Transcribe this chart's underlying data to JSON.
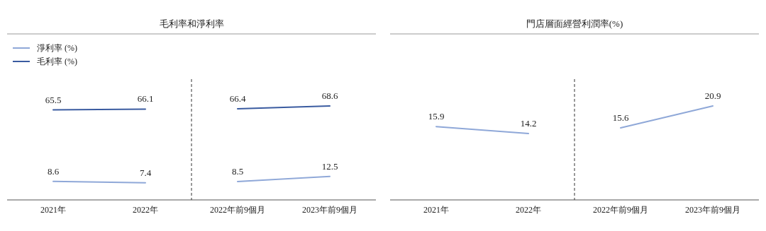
{
  "chart_data": [
    {
      "type": "line",
      "title": "毛利率和淨利率",
      "categories": [
        "2021年",
        "2022年",
        "2022年前9個月",
        "2023年前9個月"
      ],
      "series": [
        {
          "name": "淨利率 (%)",
          "color": "#8fa8d8",
          "values": [
            8.6,
            7.4,
            null,
            null
          ]
        },
        {
          "name": "毛利率 (%)",
          "color": "#3a5ba0",
          "values": [
            65.5,
            66.1,
            null,
            null
          ]
        },
        {
          "color": "#8fa8d8",
          "values": [
            null,
            null,
            8.5,
            12.5
          ]
        },
        {
          "color": "#3a5ba0",
          "values": [
            null,
            null,
            66.4,
            68.6
          ]
        }
      ],
      "data_labels": true,
      "legend": "top left",
      "marker": "none"
    },
    {
      "type": "line",
      "title": "門店層面經營利潤率(%)",
      "categories": [
        "2021年",
        "2022年",
        "2022年前9個月",
        "2023年前9個月"
      ],
      "series": [
        {
          "color": "#8fa8d8",
          "values": [
            15.9,
            14.2,
            null,
            null
          ]
        },
        {
          "color": "#8fa8d8",
          "values": [
            null,
            null,
            15.6,
            20.9
          ]
        }
      ],
      "data_labels": true,
      "legend": false,
      "marker": "none"
    }
  ]
}
